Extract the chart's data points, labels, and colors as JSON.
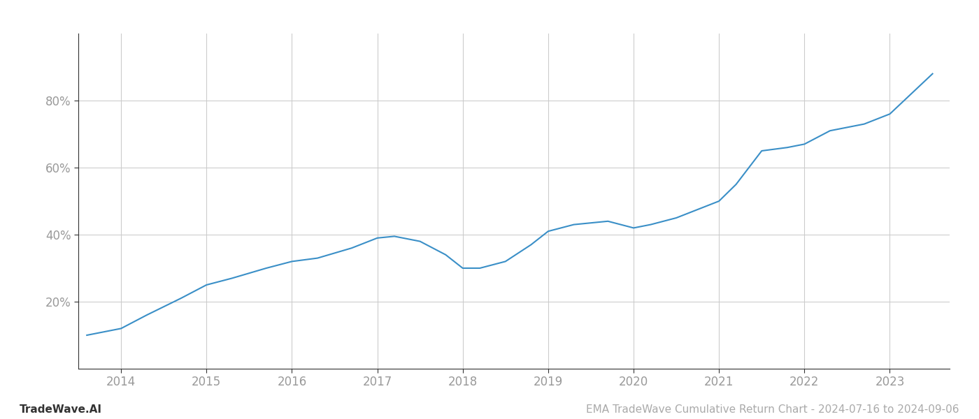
{
  "x_years": [
    2013.6,
    2014.0,
    2014.3,
    2014.7,
    2015.0,
    2015.3,
    2015.7,
    2016.0,
    2016.3,
    2016.7,
    2017.0,
    2017.2,
    2017.5,
    2017.8,
    2018.0,
    2018.2,
    2018.5,
    2018.8,
    2019.0,
    2019.3,
    2019.7,
    2020.0,
    2020.2,
    2020.5,
    2020.8,
    2021.0,
    2021.2,
    2021.5,
    2021.8,
    2022.0,
    2022.3,
    2022.7,
    2023.0,
    2023.5
  ],
  "y_values": [
    10,
    12,
    16,
    21,
    25,
    27,
    30,
    32,
    33,
    36,
    39,
    39.5,
    38,
    34,
    30,
    30,
    32,
    37,
    41,
    43,
    44,
    42,
    43,
    45,
    48,
    50,
    55,
    65,
    66,
    67,
    71,
    73,
    76,
    88
  ],
  "line_color": "#3a8fc7",
  "line_width": 1.5,
  "xlim": [
    2013.5,
    2023.7
  ],
  "ylim": [
    0,
    100
  ],
  "yticks": [
    20,
    40,
    60,
    80
  ],
  "xticks": [
    2014,
    2015,
    2016,
    2017,
    2018,
    2019,
    2020,
    2021,
    2022,
    2023
  ],
  "grid_color": "#cccccc",
  "background_color": "#ffffff",
  "footer_left": "TradeWave.AI",
  "footer_right": "EMA TradeWave Cumulative Return Chart - 2024-07-16 to 2024-09-06",
  "footer_color": "#aaaaaa",
  "footer_fontsize": 11,
  "tick_label_color": "#999999",
  "spine_color": "#333333"
}
